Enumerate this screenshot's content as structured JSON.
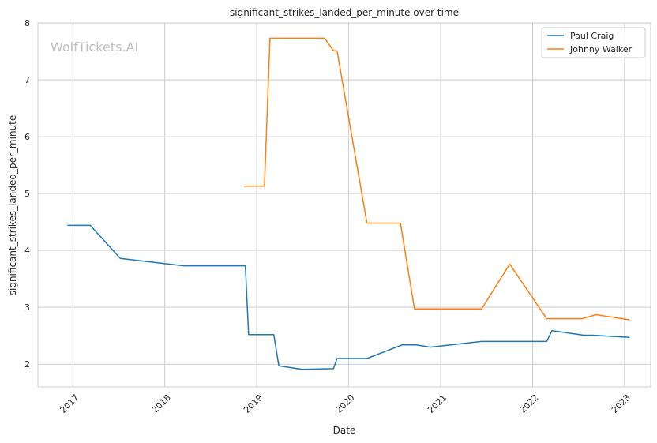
{
  "chart_data": {
    "type": "line",
    "title": "significant_strikes_landed_per_minute over time",
    "xlabel": "Date",
    "ylabel": "significant_strikes_landed_per_minute",
    "watermark": "WolfTickets.AI",
    "xlim": [
      "2016-08-15",
      "2023-04-15"
    ],
    "ylim": [
      1.6,
      8.0
    ],
    "x_ticks": [
      "2017",
      "2018",
      "2019",
      "2020",
      "2021",
      "2022",
      "2023"
    ],
    "y_ticks": [
      "2",
      "3",
      "4",
      "5",
      "6",
      "7",
      "8"
    ],
    "grid": true,
    "legend_position": "top-right",
    "series": [
      {
        "name": "Paul Craig",
        "color": "#1f77b4",
        "points": [
          [
            "2016-12-10",
            4.44
          ],
          [
            "2017-03-11",
            4.44
          ],
          [
            "2017-07-08",
            3.86
          ],
          [
            "2018-03-17",
            3.73
          ],
          [
            "2018-11-17",
            3.73
          ],
          [
            "2018-11-30",
            2.52
          ],
          [
            "2019-03-10",
            2.52
          ],
          [
            "2019-03-30",
            1.97
          ],
          [
            "2019-06-29",
            1.91
          ],
          [
            "2019-11-02",
            1.92
          ],
          [
            "2019-11-16",
            2.1
          ],
          [
            "2020-03-14",
            2.1
          ],
          [
            "2020-08-01",
            2.34
          ],
          [
            "2020-09-26",
            2.34
          ],
          [
            "2020-11-21",
            2.3
          ],
          [
            "2021-06-12",
            2.4
          ],
          [
            "2022-02-26",
            2.4
          ],
          [
            "2022-03-19",
            2.59
          ],
          [
            "2022-07-23",
            2.51
          ],
          [
            "2022-08-27",
            2.51
          ],
          [
            "2023-01-21",
            2.47
          ]
        ]
      },
      {
        "name": "Johnny Walker",
        "color": "#ff7f0e",
        "points": [
          [
            "2018-11-10",
            5.13
          ],
          [
            "2019-02-01",
            5.13
          ],
          [
            "2019-02-23",
            7.73
          ],
          [
            "2019-09-28",
            7.73
          ],
          [
            "2019-11-02",
            7.51
          ],
          [
            "2019-11-16",
            7.51
          ],
          [
            "2020-03-14",
            4.48
          ],
          [
            "2020-07-25",
            4.48
          ],
          [
            "2020-09-19",
            2.97
          ],
          [
            "2021-06-12",
            2.97
          ],
          [
            "2021-10-02",
            3.76
          ],
          [
            "2022-02-26",
            2.8
          ],
          [
            "2022-07-16",
            2.8
          ],
          [
            "2022-09-10",
            2.87
          ],
          [
            "2023-01-21",
            2.78
          ]
        ]
      }
    ]
  }
}
